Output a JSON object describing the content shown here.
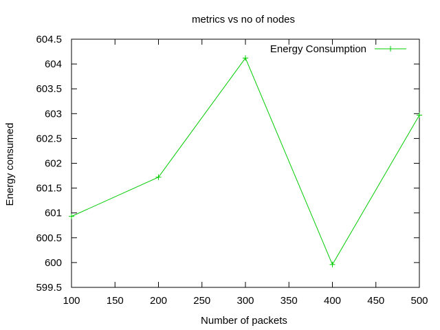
{
  "chart_data": {
    "type": "line",
    "title": "metrics vs no of nodes",
    "xlabel": "Number of packets",
    "ylabel": "Energy consumed",
    "xlim": [
      100,
      500
    ],
    "ylim": [
      599.5,
      604.5
    ],
    "xticks": [
      100,
      150,
      200,
      250,
      300,
      350,
      400,
      450,
      500
    ],
    "yticks": [
      599.5,
      600,
      600.5,
      601,
      601.5,
      602,
      602.5,
      603,
      603.5,
      604,
      604.5
    ],
    "grid": false,
    "legend_position": "top-right",
    "series": [
      {
        "name": "Energy Consumption",
        "color": "#00cc00",
        "marker": "plus",
        "x": [
          100,
          200,
          300,
          400,
          500
        ],
        "y": [
          600.93,
          601.72,
          604.12,
          599.96,
          602.97
        ]
      }
    ]
  }
}
